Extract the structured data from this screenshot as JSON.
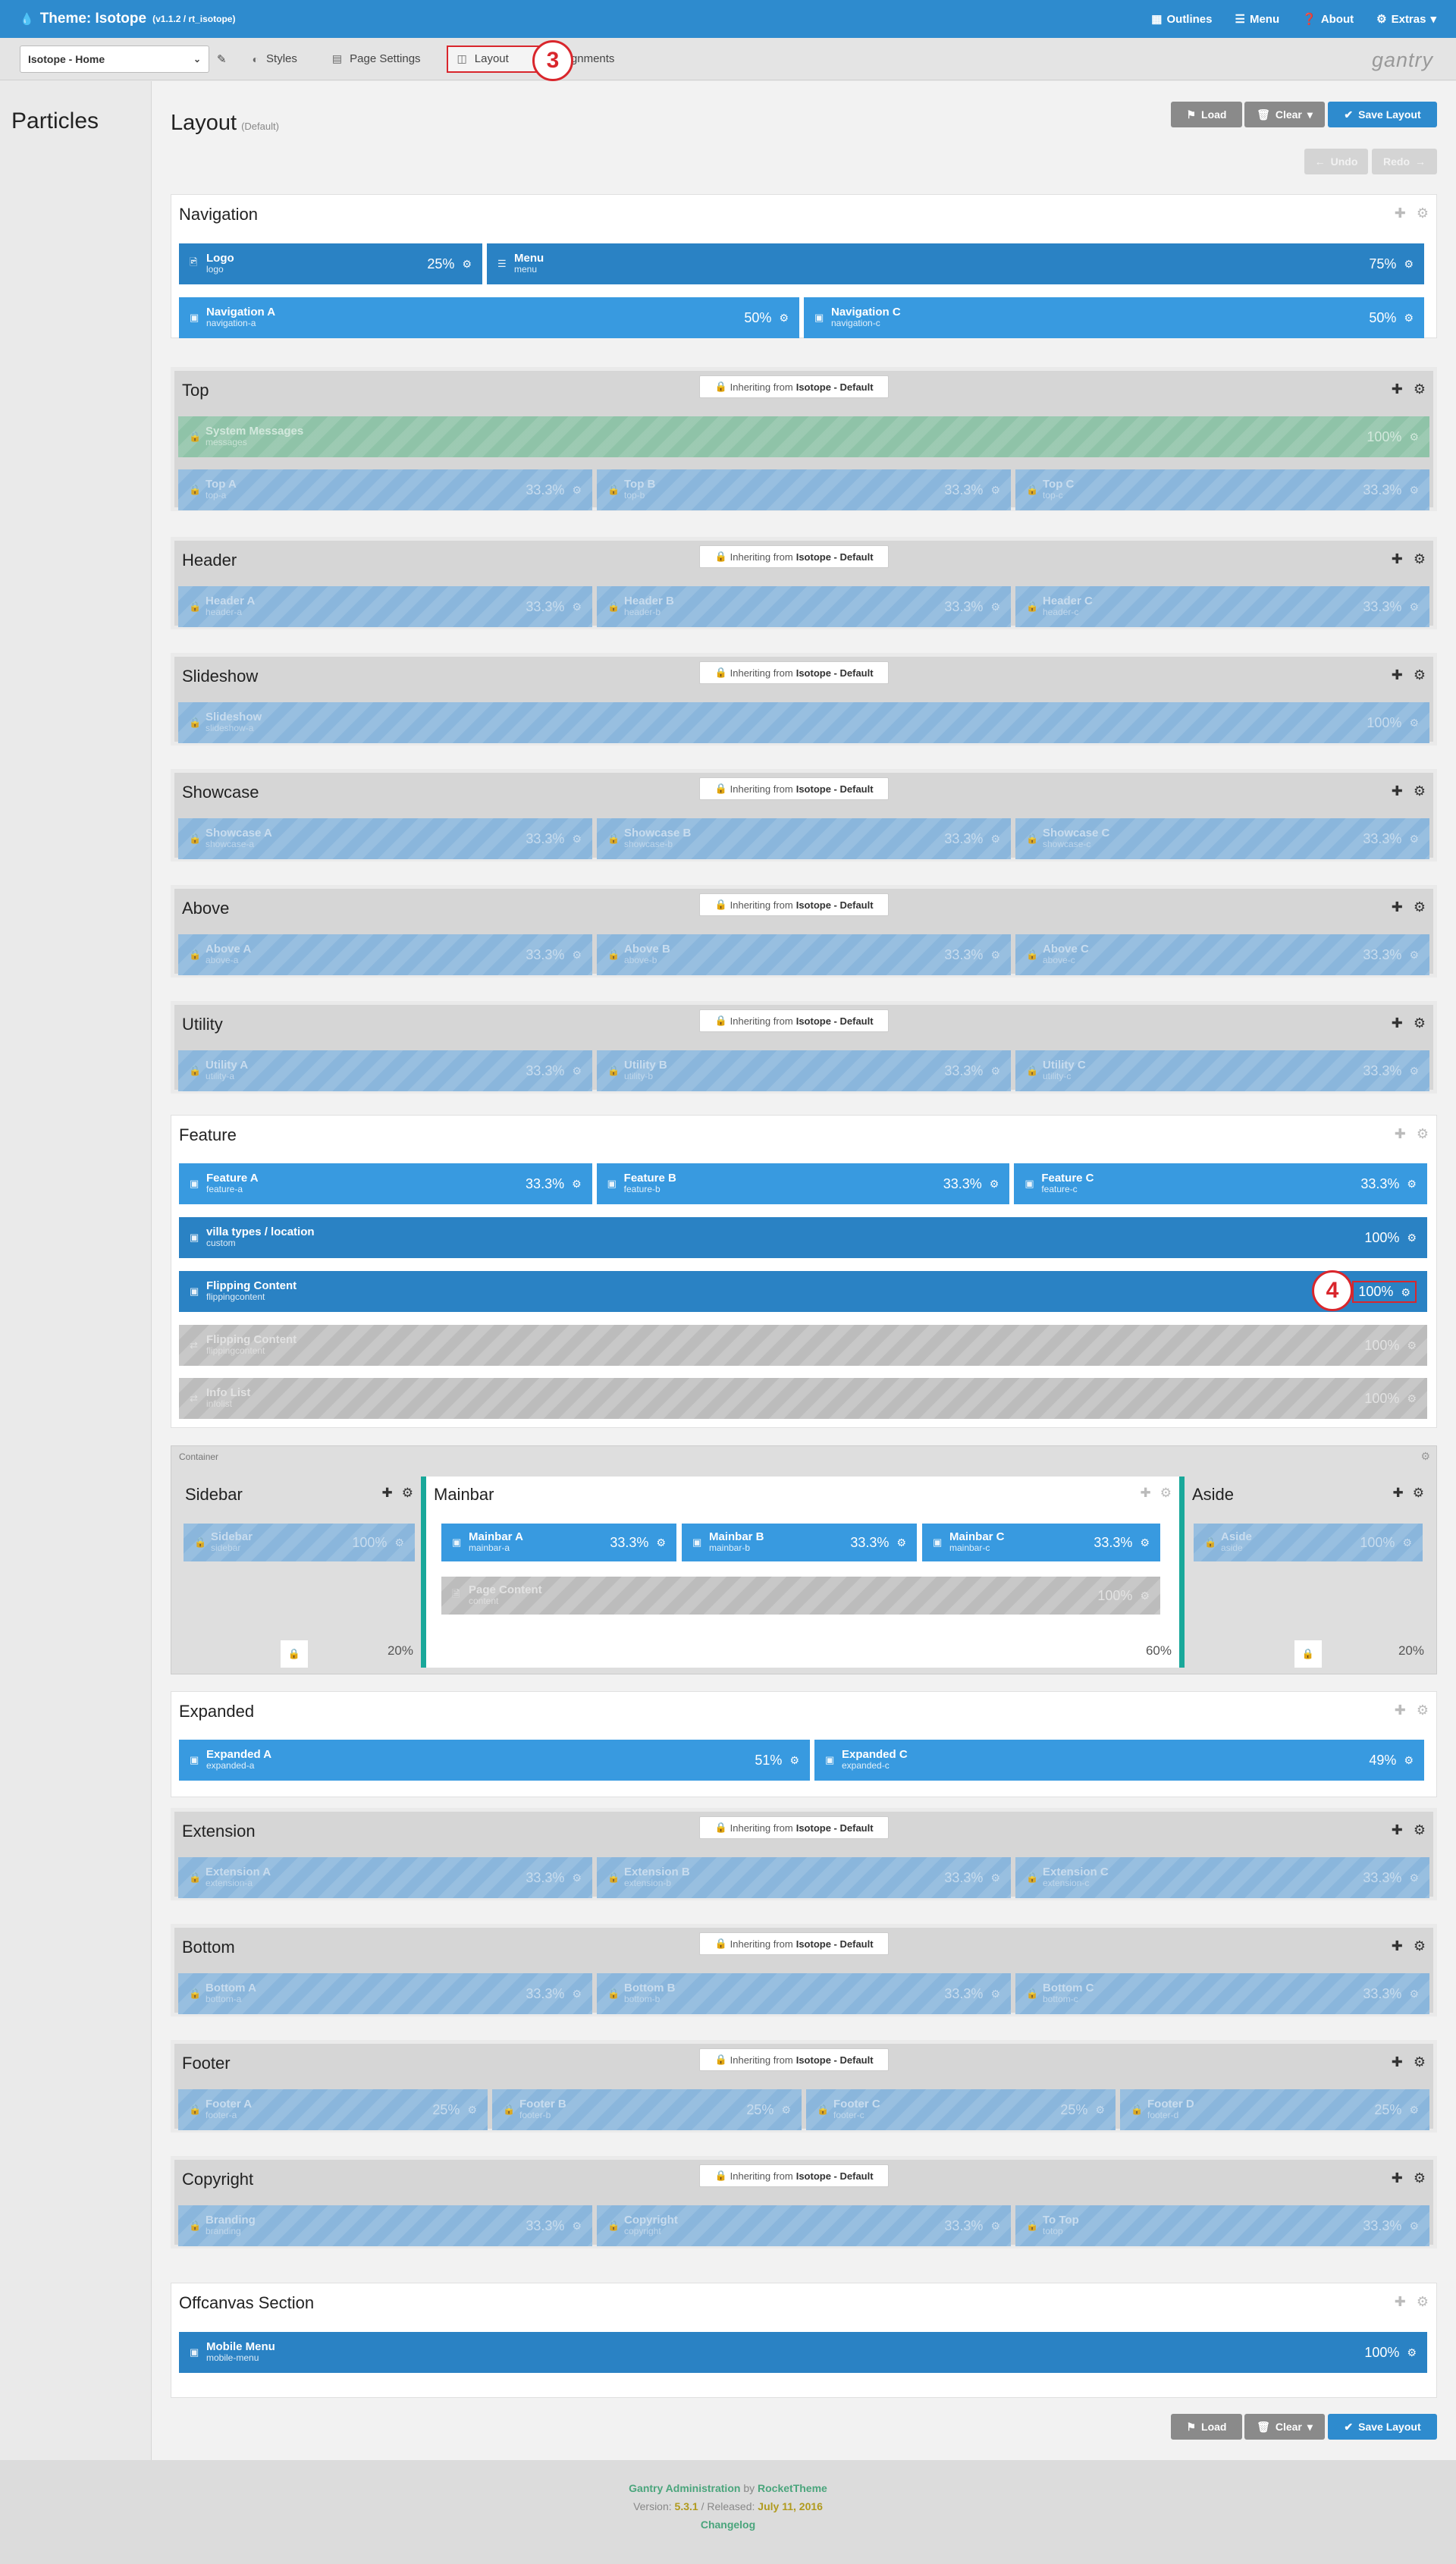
{
  "header": {
    "title": "Theme: Isotope",
    "version": "(v1.1.2 / rt_isotope)",
    "menu": [
      "Outlines",
      "Menu",
      "About",
      "Extras"
    ]
  },
  "navbar": {
    "outline": "Isotope - Home",
    "tabs": [
      "Styles",
      "Page Settings",
      "Layout",
      "Assignments"
    ],
    "brand": "gantry"
  },
  "badges": {
    "a": "3",
    "b": "4"
  },
  "left": {
    "title": "Particles"
  },
  "page": {
    "title": "Layout",
    "subtitle": "(Default)",
    "load": "Load",
    "clear": "Clear",
    "save": "Save Layout",
    "undo": "Undo",
    "redo": "Redo"
  },
  "inherit": {
    "prefix": "Inheriting from",
    "source": "Isotope - Default"
  },
  "sections": {
    "navigation": {
      "title": "Navigation",
      "rows": [
        [
          {
            "name": "Logo",
            "sub": "logo",
            "pct": "25%",
            "icon": "image-icon"
          },
          {
            "name": "Menu",
            "sub": "menu",
            "pct": "75%",
            "icon": "menu-icon"
          }
        ],
        [
          {
            "name": "Navigation A",
            "sub": "navigation-a",
            "pct": "50%",
            "icon": "position-icon"
          },
          {
            "name": "Navigation C",
            "sub": "navigation-c",
            "pct": "50%",
            "icon": "position-icon"
          }
        ]
      ]
    },
    "top": {
      "title": "Top",
      "rows": [
        [
          {
            "name": "System Messages",
            "sub": "messages",
            "pct": "100%"
          }
        ],
        [
          {
            "name": "Top A",
            "sub": "top-a",
            "pct": "33.3%"
          },
          {
            "name": "Top B",
            "sub": "top-b",
            "pct": "33.3%"
          },
          {
            "name": "Top C",
            "sub": "top-c",
            "pct": "33.3%"
          }
        ]
      ]
    },
    "header": {
      "title": "Header",
      "rows": [
        [
          {
            "name": "Header A",
            "sub": "header-a",
            "pct": "33.3%"
          },
          {
            "name": "Header B",
            "sub": "header-b",
            "pct": "33.3%"
          },
          {
            "name": "Header C",
            "sub": "header-c",
            "pct": "33.3%"
          }
        ]
      ]
    },
    "slideshow": {
      "title": "Slideshow",
      "rows": [
        [
          {
            "name": "Slideshow",
            "sub": "slideshow-a",
            "pct": "100%"
          }
        ]
      ]
    },
    "showcase": {
      "title": "Showcase",
      "rows": [
        [
          {
            "name": "Showcase A",
            "sub": "showcase-a",
            "pct": "33.3%"
          },
          {
            "name": "Showcase B",
            "sub": "showcase-b",
            "pct": "33.3%"
          },
          {
            "name": "Showcase C",
            "sub": "showcase-c",
            "pct": "33.3%"
          }
        ]
      ]
    },
    "above": {
      "title": "Above",
      "rows": [
        [
          {
            "name": "Above A",
            "sub": "above-a",
            "pct": "33.3%"
          },
          {
            "name": "Above B",
            "sub": "above-b",
            "pct": "33.3%"
          },
          {
            "name": "Above C",
            "sub": "above-c",
            "pct": "33.3%"
          }
        ]
      ]
    },
    "utility": {
      "title": "Utility",
      "rows": [
        [
          {
            "name": "Utility A",
            "sub": "utility-a",
            "pct": "33.3%"
          },
          {
            "name": "Utility B",
            "sub": "utility-b",
            "pct": "33.3%"
          },
          {
            "name": "Utility C",
            "sub": "utility-c",
            "pct": "33.3%"
          }
        ]
      ]
    },
    "feature": {
      "title": "Feature",
      "rows": [
        [
          {
            "name": "Feature A",
            "sub": "feature-a",
            "pct": "33.3%"
          },
          {
            "name": "Feature B",
            "sub": "feature-b",
            "pct": "33.3%"
          },
          {
            "name": "Feature C",
            "sub": "feature-c",
            "pct": "33.3%"
          }
        ],
        [
          {
            "name": "villa types / location",
            "sub": "custom",
            "pct": "100%"
          }
        ],
        [
          {
            "name": "Flipping Content",
            "sub": "flippingcontent",
            "pct": "100%"
          }
        ],
        [
          {
            "name": "Flipping Content",
            "sub": "flippingcontent",
            "pct": "100%"
          }
        ],
        [
          {
            "name": "Info List",
            "sub": "infolist",
            "pct": "100%"
          }
        ]
      ]
    },
    "container": {
      "label": "Container",
      "sidebar": {
        "title": "Sidebar",
        "name": "Sidebar",
        "sub": "sidebar",
        "pct": "100%",
        "colpct": "20%"
      },
      "mainbar": {
        "title": "Mainbar",
        "colpct": "60%",
        "particles": [
          {
            "name": "Mainbar A",
            "sub": "mainbar-a",
            "pct": "33.3%"
          },
          {
            "name": "Mainbar B",
            "sub": "mainbar-b",
            "pct": "33.3%"
          },
          {
            "name": "Mainbar C",
            "sub": "mainbar-c",
            "pct": "33.3%"
          }
        ],
        "content": {
          "name": "Page Content",
          "sub": "content",
          "pct": "100%"
        }
      },
      "aside": {
        "title": "Aside",
        "name": "Aside",
        "sub": "aside",
        "pct": "100%",
        "colpct": "20%"
      }
    },
    "expanded": {
      "title": "Expanded",
      "rows": [
        [
          {
            "name": "Expanded A",
            "sub": "expanded-a",
            "pct": "51%"
          },
          {
            "name": "Expanded C",
            "sub": "expanded-c",
            "pct": "49%"
          }
        ]
      ]
    },
    "extension": {
      "title": "Extension",
      "rows": [
        [
          {
            "name": "Extension A",
            "sub": "extension-a",
            "pct": "33.3%"
          },
          {
            "name": "Extension B",
            "sub": "extension-b",
            "pct": "33.3%"
          },
          {
            "name": "Extension C",
            "sub": "extension-c",
            "pct": "33.3%"
          }
        ]
      ]
    },
    "bottom": {
      "title": "Bottom",
      "rows": [
        [
          {
            "name": "Bottom A",
            "sub": "bottom-a",
            "pct": "33.3%"
          },
          {
            "name": "Bottom B",
            "sub": "bottom-b",
            "pct": "33.3%"
          },
          {
            "name": "Bottom C",
            "sub": "bottom-c",
            "pct": "33.3%"
          }
        ]
      ]
    },
    "footer": {
      "title": "Footer",
      "rows": [
        [
          {
            "name": "Footer A",
            "sub": "footer-a",
            "pct": "25%"
          },
          {
            "name": "Footer B",
            "sub": "footer-b",
            "pct": "25%"
          },
          {
            "name": "Footer C",
            "sub": "footer-c",
            "pct": "25%"
          },
          {
            "name": "Footer D",
            "sub": "footer-d",
            "pct": "25%"
          }
        ]
      ]
    },
    "copyright": {
      "title": "Copyright",
      "rows": [
        [
          {
            "name": "Branding",
            "sub": "branding",
            "pct": "33.3%"
          },
          {
            "name": "Copyright",
            "sub": "copyright",
            "pct": "33.3%"
          },
          {
            "name": "To Top",
            "sub": "totop",
            "pct": "33.3%"
          }
        ]
      ]
    },
    "offcanvas": {
      "title": "Offcanvas Section",
      "rows": [
        [
          {
            "name": "Mobile Menu",
            "sub": "mobile-menu",
            "pct": "100%"
          }
        ]
      ]
    }
  },
  "footer": {
    "line1a": "Gantry Administration",
    "line1b": "by",
    "line1c": "RocketTheme",
    "version_label": "Version:",
    "version": "5.3.1",
    "released_label": "/ Released:",
    "released": "July 11, 2016",
    "changelog": "Changelog"
  },
  "colors": {
    "accent": "#2e8bce",
    "particle": "#389ae0",
    "particle_dark": "#2a82c4",
    "badge": "#d9262c",
    "separator": "#19a89a"
  }
}
